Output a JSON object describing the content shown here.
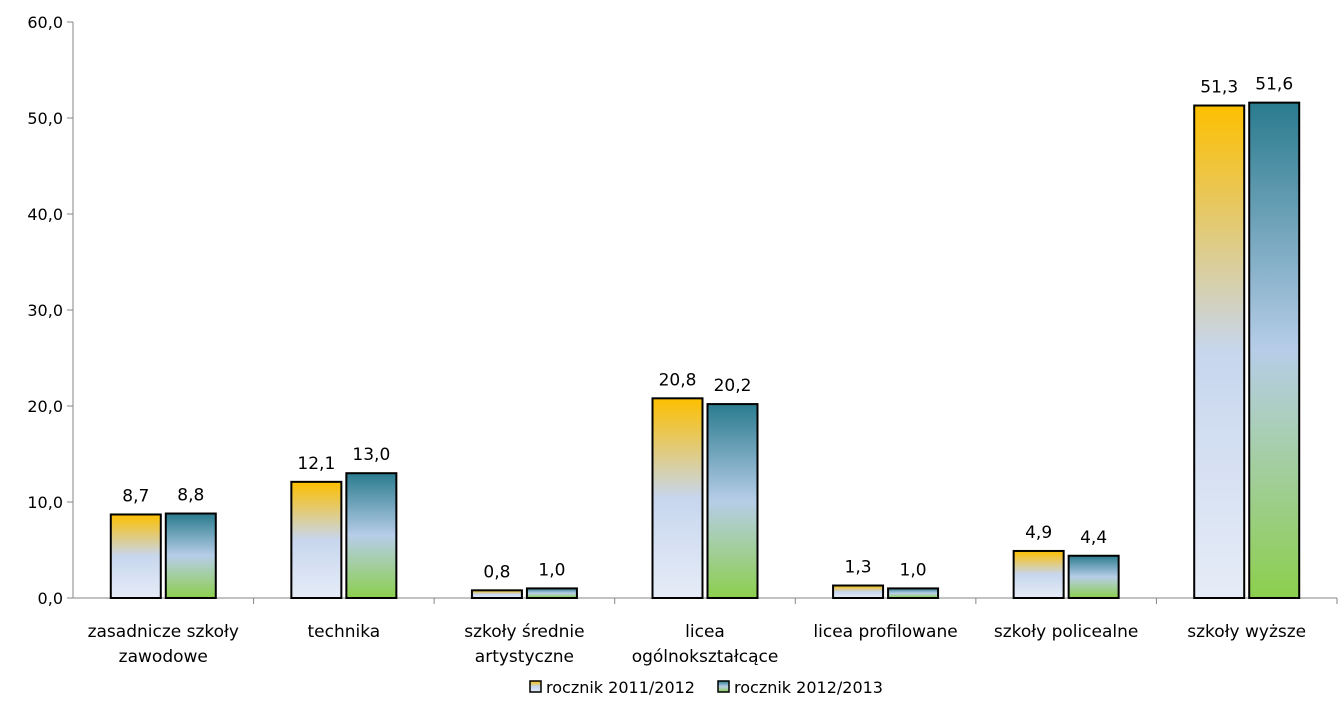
{
  "chart_data": {
    "type": "bar",
    "title": "",
    "xlabel": "",
    "ylabel": "",
    "ylim": [
      0,
      60
    ],
    "yticks": [
      "0,0",
      "10,0",
      "20,0",
      "30,0",
      "40,0",
      "50,0",
      "60,0"
    ],
    "grid": false,
    "legend_position": "bottom",
    "categories": [
      [
        "zasadnicze szkoły",
        "zawodowe"
      ],
      [
        "technika"
      ],
      [
        "szkoły średnie",
        "artystyczne"
      ],
      [
        "licea",
        "ogólnokształcące"
      ],
      [
        "licea profilowane"
      ],
      [
        "szkoły policealne"
      ],
      [
        "szkoły wyższe"
      ]
    ],
    "series": [
      {
        "name": "rocznik 2011/2012",
        "values": [
          8.7,
          12.1,
          0.8,
          20.8,
          1.3,
          4.9,
          51.3
        ],
        "labels": [
          "8,7",
          "12,1",
          "0,8",
          "20,8",
          "1,3",
          "4,9",
          "51,3"
        ],
        "colors": [
          "#FDBF00",
          "#C7D6EE",
          "#E6ECF7"
        ]
      },
      {
        "name": "rocznik 2012/2013",
        "values": [
          8.8,
          13.0,
          1.0,
          20.2,
          1.0,
          4.4,
          51.6
        ],
        "labels": [
          "8,8",
          "13,0",
          "1,0",
          "20,2",
          "1,0",
          "4,4",
          "51,6"
        ],
        "colors": [
          "#2A7B8E",
          "#B7CDE8",
          "#8CCF4D"
        ]
      }
    ]
  }
}
